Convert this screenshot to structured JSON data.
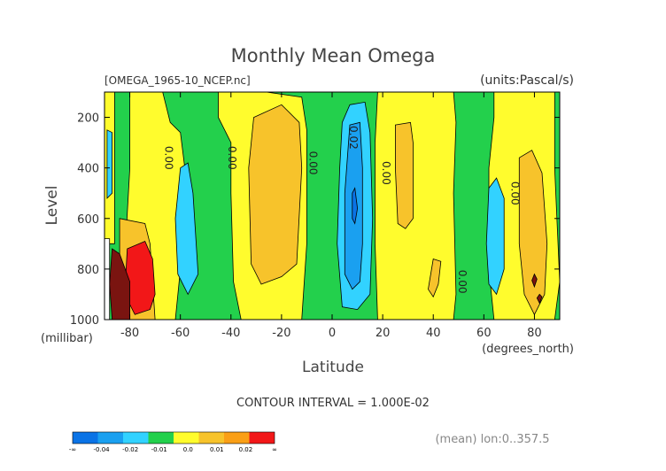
{
  "chart_data": {
    "type": "heatmap",
    "title": "Monthly Mean Omega",
    "source_file": "[OMEGA_1965-10_NCEP.nc]",
    "units": "(units:Pascal/s)",
    "xlabel": "Latitude",
    "x_units": "(degrees_north)",
    "ylabel": "Level",
    "y_units": "(millibar)",
    "xlim": [
      -90,
      90
    ],
    "ylim": [
      1000,
      100
    ],
    "x_ticks": [
      -80,
      -60,
      -40,
      -20,
      0,
      20,
      40,
      60,
      80
    ],
    "y_ticks": [
      200,
      400,
      600,
      800,
      1000
    ],
    "contour_interval_text": "CONTOUR INTERVAL = 1.000E-02",
    "mean_note": "(mean) lon:0..357.5",
    "contour_labels": [
      {
        "text": "0.00",
        "lat": -66,
        "level": 360
      },
      {
        "text": "0.00",
        "lat": -41,
        "level": 360
      },
      {
        "text": "0.00",
        "lat": -9,
        "level": 380
      },
      {
        "text": "0.02",
        "lat": 7,
        "level": 280
      },
      {
        "text": "0.00",
        "lat": 20,
        "level": 420
      },
      {
        "text": "0.00",
        "lat": 50,
        "level": 850
      },
      {
        "text": "0.00",
        "lat": 71,
        "level": 500
      }
    ],
    "legend": {
      "colors": [
        "#0a73e6",
        "#1aa0f0",
        "#32d2ff",
        "#23d04c",
        "#fffc2d",
        "#f7c32b",
        "#fa9f16",
        "#f21718"
      ],
      "labels": [
        "-∞",
        "-0.04",
        "-0.02",
        "-0.01",
        "0.0",
        "0.01",
        "0.02",
        "∞"
      ],
      "label_positions": [
        0,
        1,
        2,
        3,
        4,
        5,
        6,
        7
      ]
    },
    "regions": {
      "background_class": "near_zero_negative",
      "cells": [
        {
          "cls": "weak_positive",
          "lat": [
            -90,
            -87
          ],
          "level": [
            100,
            1000
          ]
        },
        {
          "cls": "weak_positive",
          "lat": [
            -76,
            -59
          ],
          "level": [
            100,
            1000
          ]
        },
        {
          "cls": "weak_positive",
          "lat": [
            -36,
            -8
          ],
          "level": [
            100,
            1000
          ]
        },
        {
          "cls": "weak_positive",
          "lat": [
            15,
            48
          ],
          "level": [
            100,
            1000
          ]
        },
        {
          "cls": "weak_positive",
          "lat": [
            58,
            88
          ],
          "level": [
            100,
            1000
          ]
        }
      ]
    }
  }
}
